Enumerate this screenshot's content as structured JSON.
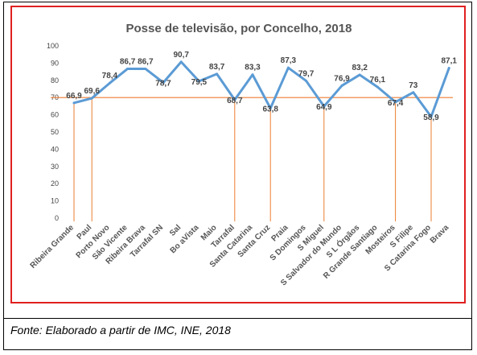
{
  "caption": "Fonte: Elaborado a partir de IMC, INE, 2018",
  "chart_data": {
    "type": "line",
    "title": "Posse de televisão, por Concelho, 2018",
    "xlabel": "",
    "ylabel": "",
    "ylim": [
      0,
      100
    ],
    "yticks": [
      0,
      10,
      20,
      30,
      40,
      50,
      60,
      70,
      80,
      90,
      100
    ],
    "grid": false,
    "legend": "none",
    "categories": [
      "Ribeira Grande",
      "Paul",
      "Porto Novo",
      "São Vicente",
      "Ribeira Brava",
      "Tarrafal SN",
      "Sal",
      "Bo aVista",
      "Maio",
      "Tarrafal",
      "Santa Catarina",
      "Santa Cruz",
      "Praia",
      "S Domingos",
      "S Miguel",
      "S Salvador do Mundo",
      "S L Órgãos",
      "R Grande Santiago",
      "Mosteiros",
      "S Filipe",
      "S Catarina Fogo",
      "Brava"
    ],
    "series": [
      {
        "values": [
          66.9,
          69.6,
          78.4,
          86.7,
          86.7,
          78.7,
          90.7,
          79.5,
          83.7,
          68.7,
          83.3,
          63.8,
          87.3,
          79.7,
          64.9,
          76.9,
          83.2,
          76.1,
          67.4,
          73,
          58.9,
          87.1
        ],
        "labels": [
          "66,9",
          "69,6",
          "78,4",
          "86,7",
          "86,7",
          "78,7",
          "90,7",
          "79,5",
          "83,7",
          "68,7",
          "83,3",
          "63,8",
          "87,3",
          "79,7",
          "64,9",
          "76,9",
          "83,2",
          "76,1",
          "67,4",
          "73",
          "58,9",
          "87,1"
        ],
        "color": "#5b9bd5"
      }
    ],
    "reference_line": {
      "value": 70,
      "color": "#ed7d31"
    },
    "drop_lines": [
      {
        "category": "Ribeira Grande",
        "color": "#ed7d31"
      },
      {
        "category": "Paul",
        "color": "#ed7d31"
      },
      {
        "category": "Tarrafal",
        "color": "#ed7d31"
      },
      {
        "category": "Santa Cruz",
        "color": "#ed7d31"
      },
      {
        "category": "S Miguel",
        "color": "#ed7d31"
      },
      {
        "category": "Mosteiros",
        "color": "#ed7d31"
      },
      {
        "category": "S Catarina Fogo",
        "color": "#ed7d31"
      }
    ]
  }
}
